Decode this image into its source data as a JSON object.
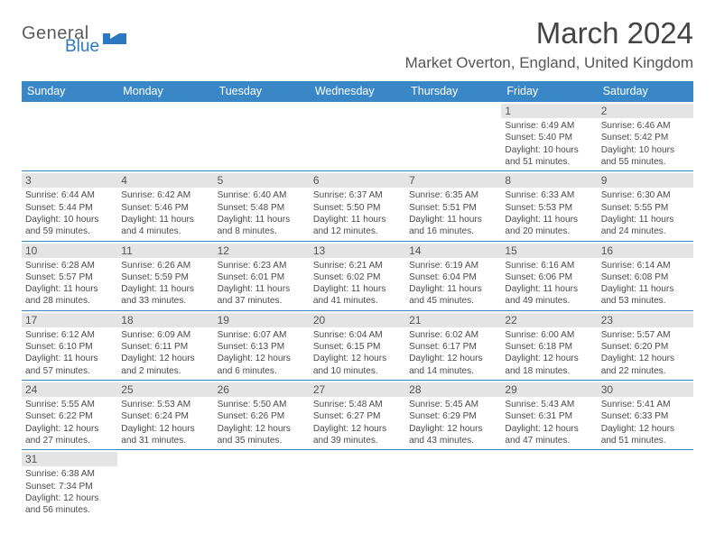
{
  "logo": {
    "word1": "General",
    "word2": "Blue"
  },
  "title": "March 2024",
  "location": "Market Overton, England, United Kingdom",
  "colors": {
    "header_bar": "#3a87c8",
    "daynum_bg": "#e4e4e4",
    "text": "#333333",
    "logo_gray": "#5c5c5c",
    "logo_blue": "#2b78c2"
  },
  "day_names": [
    "Sunday",
    "Monday",
    "Tuesday",
    "Wednesday",
    "Thursday",
    "Friday",
    "Saturday"
  ],
  "weeks": [
    [
      {
        "n": "",
        "sr": "",
        "ss": "",
        "dl": ""
      },
      {
        "n": "",
        "sr": "",
        "ss": "",
        "dl": ""
      },
      {
        "n": "",
        "sr": "",
        "ss": "",
        "dl": ""
      },
      {
        "n": "",
        "sr": "",
        "ss": "",
        "dl": ""
      },
      {
        "n": "",
        "sr": "",
        "ss": "",
        "dl": ""
      },
      {
        "n": "1",
        "sr": "Sunrise: 6:49 AM",
        "ss": "Sunset: 5:40 PM",
        "dl": "Daylight: 10 hours and 51 minutes."
      },
      {
        "n": "2",
        "sr": "Sunrise: 6:46 AM",
        "ss": "Sunset: 5:42 PM",
        "dl": "Daylight: 10 hours and 55 minutes."
      }
    ],
    [
      {
        "n": "3",
        "sr": "Sunrise: 6:44 AM",
        "ss": "Sunset: 5:44 PM",
        "dl": "Daylight: 10 hours and 59 minutes."
      },
      {
        "n": "4",
        "sr": "Sunrise: 6:42 AM",
        "ss": "Sunset: 5:46 PM",
        "dl": "Daylight: 11 hours and 4 minutes."
      },
      {
        "n": "5",
        "sr": "Sunrise: 6:40 AM",
        "ss": "Sunset: 5:48 PM",
        "dl": "Daylight: 11 hours and 8 minutes."
      },
      {
        "n": "6",
        "sr": "Sunrise: 6:37 AM",
        "ss": "Sunset: 5:50 PM",
        "dl": "Daylight: 11 hours and 12 minutes."
      },
      {
        "n": "7",
        "sr": "Sunrise: 6:35 AM",
        "ss": "Sunset: 5:51 PM",
        "dl": "Daylight: 11 hours and 16 minutes."
      },
      {
        "n": "8",
        "sr": "Sunrise: 6:33 AM",
        "ss": "Sunset: 5:53 PM",
        "dl": "Daylight: 11 hours and 20 minutes."
      },
      {
        "n": "9",
        "sr": "Sunrise: 6:30 AM",
        "ss": "Sunset: 5:55 PM",
        "dl": "Daylight: 11 hours and 24 minutes."
      }
    ],
    [
      {
        "n": "10",
        "sr": "Sunrise: 6:28 AM",
        "ss": "Sunset: 5:57 PM",
        "dl": "Daylight: 11 hours and 28 minutes."
      },
      {
        "n": "11",
        "sr": "Sunrise: 6:26 AM",
        "ss": "Sunset: 5:59 PM",
        "dl": "Daylight: 11 hours and 33 minutes."
      },
      {
        "n": "12",
        "sr": "Sunrise: 6:23 AM",
        "ss": "Sunset: 6:01 PM",
        "dl": "Daylight: 11 hours and 37 minutes."
      },
      {
        "n": "13",
        "sr": "Sunrise: 6:21 AM",
        "ss": "Sunset: 6:02 PM",
        "dl": "Daylight: 11 hours and 41 minutes."
      },
      {
        "n": "14",
        "sr": "Sunrise: 6:19 AM",
        "ss": "Sunset: 6:04 PM",
        "dl": "Daylight: 11 hours and 45 minutes."
      },
      {
        "n": "15",
        "sr": "Sunrise: 6:16 AM",
        "ss": "Sunset: 6:06 PM",
        "dl": "Daylight: 11 hours and 49 minutes."
      },
      {
        "n": "16",
        "sr": "Sunrise: 6:14 AM",
        "ss": "Sunset: 6:08 PM",
        "dl": "Daylight: 11 hours and 53 minutes."
      }
    ],
    [
      {
        "n": "17",
        "sr": "Sunrise: 6:12 AM",
        "ss": "Sunset: 6:10 PM",
        "dl": "Daylight: 11 hours and 57 minutes."
      },
      {
        "n": "18",
        "sr": "Sunrise: 6:09 AM",
        "ss": "Sunset: 6:11 PM",
        "dl": "Daylight: 12 hours and 2 minutes."
      },
      {
        "n": "19",
        "sr": "Sunrise: 6:07 AM",
        "ss": "Sunset: 6:13 PM",
        "dl": "Daylight: 12 hours and 6 minutes."
      },
      {
        "n": "20",
        "sr": "Sunrise: 6:04 AM",
        "ss": "Sunset: 6:15 PM",
        "dl": "Daylight: 12 hours and 10 minutes."
      },
      {
        "n": "21",
        "sr": "Sunrise: 6:02 AM",
        "ss": "Sunset: 6:17 PM",
        "dl": "Daylight: 12 hours and 14 minutes."
      },
      {
        "n": "22",
        "sr": "Sunrise: 6:00 AM",
        "ss": "Sunset: 6:18 PM",
        "dl": "Daylight: 12 hours and 18 minutes."
      },
      {
        "n": "23",
        "sr": "Sunrise: 5:57 AM",
        "ss": "Sunset: 6:20 PM",
        "dl": "Daylight: 12 hours and 22 minutes."
      }
    ],
    [
      {
        "n": "24",
        "sr": "Sunrise: 5:55 AM",
        "ss": "Sunset: 6:22 PM",
        "dl": "Daylight: 12 hours and 27 minutes."
      },
      {
        "n": "25",
        "sr": "Sunrise: 5:53 AM",
        "ss": "Sunset: 6:24 PM",
        "dl": "Daylight: 12 hours and 31 minutes."
      },
      {
        "n": "26",
        "sr": "Sunrise: 5:50 AM",
        "ss": "Sunset: 6:26 PM",
        "dl": "Daylight: 12 hours and 35 minutes."
      },
      {
        "n": "27",
        "sr": "Sunrise: 5:48 AM",
        "ss": "Sunset: 6:27 PM",
        "dl": "Daylight: 12 hours and 39 minutes."
      },
      {
        "n": "28",
        "sr": "Sunrise: 5:45 AM",
        "ss": "Sunset: 6:29 PM",
        "dl": "Daylight: 12 hours and 43 minutes."
      },
      {
        "n": "29",
        "sr": "Sunrise: 5:43 AM",
        "ss": "Sunset: 6:31 PM",
        "dl": "Daylight: 12 hours and 47 minutes."
      },
      {
        "n": "30",
        "sr": "Sunrise: 5:41 AM",
        "ss": "Sunset: 6:33 PM",
        "dl": "Daylight: 12 hours and 51 minutes."
      }
    ],
    [
      {
        "n": "31",
        "sr": "Sunrise: 6:38 AM",
        "ss": "Sunset: 7:34 PM",
        "dl": "Daylight: 12 hours and 56 minutes."
      },
      {
        "n": "",
        "sr": "",
        "ss": "",
        "dl": ""
      },
      {
        "n": "",
        "sr": "",
        "ss": "",
        "dl": ""
      },
      {
        "n": "",
        "sr": "",
        "ss": "",
        "dl": ""
      },
      {
        "n": "",
        "sr": "",
        "ss": "",
        "dl": ""
      },
      {
        "n": "",
        "sr": "",
        "ss": "",
        "dl": ""
      },
      {
        "n": "",
        "sr": "",
        "ss": "",
        "dl": ""
      }
    ]
  ]
}
